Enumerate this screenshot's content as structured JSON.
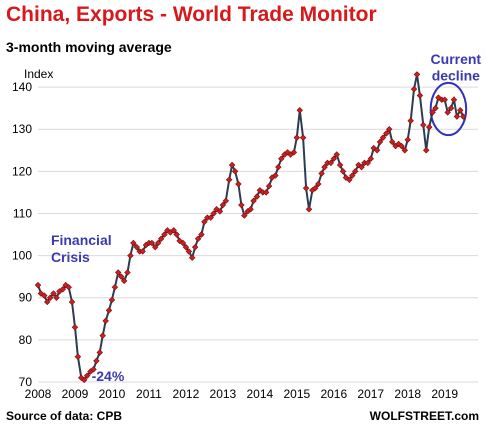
{
  "title": "China, Exports - World Trade Monitor",
  "subtitle": "3-month moving average",
  "source": "Source of data: CPB",
  "brand": "WOLFSTREET.com",
  "colors": {
    "title": "#d7191c",
    "line": "#2b3d52",
    "marker": "#cc1f1f",
    "annotation": "#3a3ab0",
    "grid": "#d9d9d9"
  },
  "chart_data": {
    "type": "line",
    "ylabel": "Index",
    "ylim": [
      70,
      145
    ],
    "yticks": [
      70,
      80,
      90,
      100,
      110,
      120,
      130,
      140
    ],
    "xlim": [
      2008,
      2019.9
    ],
    "xticks": [
      "2008",
      "2009",
      "2010",
      "2011",
      "2012",
      "2013",
      "2014",
      "2015",
      "2016",
      "2017",
      "2018",
      "2019"
    ],
    "grid": true,
    "annotations": [
      {
        "text": "Financial",
        "x": 2008.35,
        "y": 102.5
      },
      {
        "text": "Crisis",
        "x": 2008.35,
        "y": 98.5
      },
      {
        "text": "-24%",
        "x": 2009.45,
        "y": 70.2
      },
      {
        "text": "Current",
        "x": 2019.3,
        "y": 145.5
      },
      {
        "text": "decline",
        "x": 2019.3,
        "y": 141.5
      }
    ],
    "highlight": {
      "cx": 2019.1,
      "cy": 134.8,
      "rx": 0.48,
      "ry": 6.2
    },
    "series": [
      {
        "x": [
          2008.0,
          2008.08,
          2008.17,
          2008.25,
          2008.33,
          2008.42,
          2008.5,
          2008.58,
          2008.67,
          2008.75,
          2008.83,
          2008.92,
          2009.0,
          2009.08,
          2009.17,
          2009.25,
          2009.33,
          2009.42,
          2009.5,
          2009.58,
          2009.67,
          2009.75,
          2009.83,
          2009.92,
          2010.0,
          2010.08,
          2010.17,
          2010.25,
          2010.33,
          2010.42,
          2010.5,
          2010.58,
          2010.67,
          2010.75,
          2010.83,
          2010.92,
          2011.0,
          2011.08,
          2011.17,
          2011.25,
          2011.33,
          2011.42,
          2011.5,
          2011.58,
          2011.67,
          2011.75,
          2011.83,
          2011.92,
          2012.0,
          2012.08,
          2012.17,
          2012.25,
          2012.33,
          2012.42,
          2012.5,
          2012.58,
          2012.67,
          2012.75,
          2012.83,
          2012.92,
          2013.0,
          2013.08,
          2013.17,
          2013.25,
          2013.33,
          2013.42,
          2013.5,
          2013.58,
          2013.67,
          2013.75,
          2013.83,
          2013.92,
          2014.0,
          2014.08,
          2014.17,
          2014.25,
          2014.33,
          2014.42,
          2014.5,
          2014.58,
          2014.67,
          2014.75,
          2014.83,
          2014.92,
          2015.0,
          2015.08,
          2015.17,
          2015.25,
          2015.33,
          2015.42,
          2015.5,
          2015.58,
          2015.67,
          2015.75,
          2015.83,
          2015.92,
          2016.0,
          2016.08,
          2016.17,
          2016.25,
          2016.33,
          2016.42,
          2016.5,
          2016.58,
          2016.67,
          2016.75,
          2016.83,
          2016.92,
          2017.0,
          2017.08,
          2017.17,
          2017.25,
          2017.33,
          2017.42,
          2017.5,
          2017.58,
          2017.67,
          2017.75,
          2017.83,
          2017.92,
          2018.0,
          2018.08,
          2018.17,
          2018.25,
          2018.33,
          2018.42,
          2018.5,
          2018.58,
          2018.67,
          2018.75,
          2018.83,
          2018.92,
          2019.0,
          2019.08,
          2019.17,
          2019.25,
          2019.33,
          2019.42,
          2019.5
        ],
        "values": [
          93,
          91,
          90.5,
          89,
          90,
          91,
          90,
          91.5,
          92,
          93,
          92.5,
          89,
          83,
          76,
          71,
          70.5,
          71.5,
          72.5,
          73,
          75,
          77,
          81,
          84.5,
          87,
          89.5,
          92.5,
          96,
          95,
          94,
          96,
          100,
          103,
          102,
          101,
          101,
          102.5,
          103,
          103,
          102,
          103,
          104,
          105,
          106,
          105.5,
          106,
          105,
          103.5,
          103,
          102,
          101,
          99.5,
          102,
          104,
          105,
          108,
          109,
          109,
          110,
          111,
          110.5,
          112,
          113,
          118,
          121.5,
          120,
          117,
          112,
          109.5,
          110.5,
          111,
          113,
          114,
          115.5,
          115,
          115,
          116.5,
          118.5,
          119,
          121,
          123,
          124,
          124.5,
          124,
          124.5,
          128,
          134.5,
          128,
          116,
          111,
          115.5,
          116,
          117,
          119.5,
          121,
          122,
          122,
          123,
          124,
          121.5,
          120,
          118.5,
          118,
          119,
          120,
          121.5,
          121,
          122,
          122,
          123,
          125.5,
          125,
          127,
          128,
          129,
          130,
          127,
          126,
          126.5,
          126,
          125,
          127.5,
          132,
          139.5,
          143,
          138,
          131,
          125,
          130.5,
          134,
          135,
          137.5,
          137,
          137,
          134,
          135,
          137,
          133,
          134.5,
          133
        ]
      }
    ]
  }
}
